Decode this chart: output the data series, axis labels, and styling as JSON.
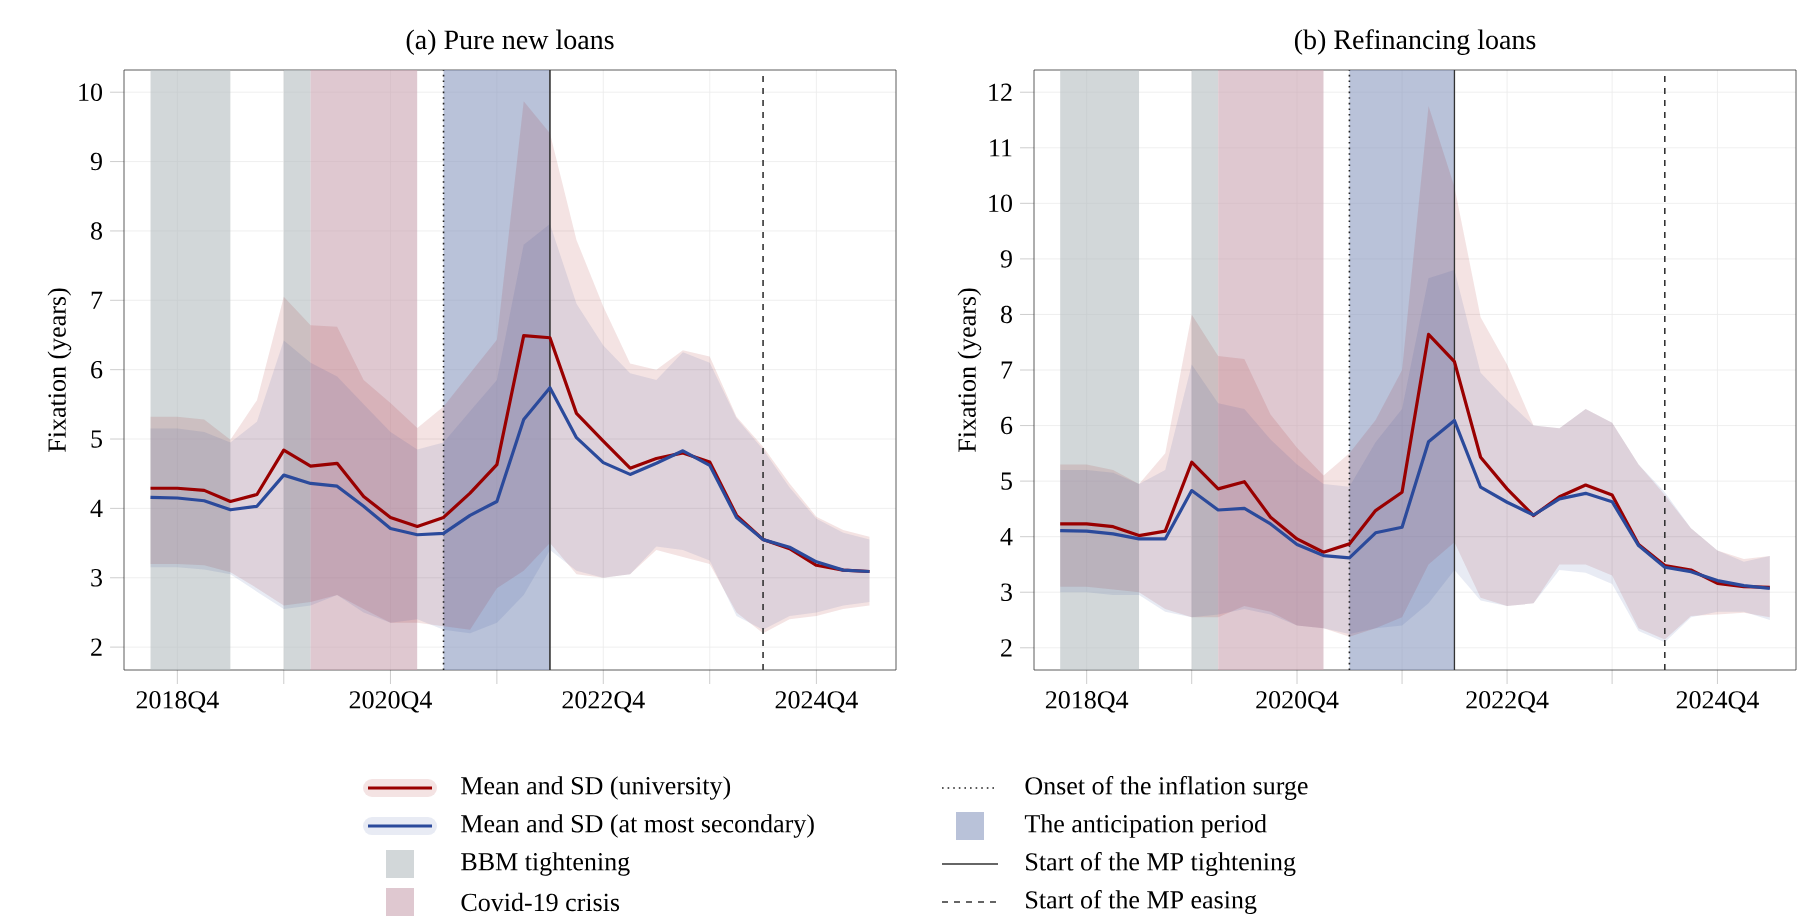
{
  "chart_data": [
    {
      "type": "line",
      "title": "(a) Pure new loans",
      "ylabel": "Fixation (years)",
      "x": [
        "2018-07",
        "2018-10",
        "2019-01",
        "2019-04",
        "2019-07",
        "2019-10",
        "2020-01",
        "2020-04",
        "2020-07",
        "2020-10",
        "2021-01",
        "2021-04",
        "2021-07",
        "2021-10",
        "2022-01",
        "2022-04",
        "2022-07",
        "2022-10",
        "2023-01",
        "2023-04",
        "2023-07",
        "2023-10",
        "2024-01",
        "2024-04",
        "2024-07",
        "2024-10",
        "2025-01",
        "2025-04"
      ],
      "series": [
        {
          "name": "Mean and SD (university)",
          "color": "#990000",
          "values": [
            4.29,
            4.29,
            4.26,
            4.1,
            4.2,
            4.84,
            4.61,
            4.65,
            4.17,
            3.87,
            3.74,
            3.87,
            4.22,
            4.63,
            6.49,
            6.46,
            5.37,
            4.97,
            4.58,
            4.72,
            4.8,
            4.67,
            3.9,
            3.55,
            3.42,
            3.18,
            3.11,
            3.09
          ],
          "lower": [
            3.2,
            3.2,
            3.18,
            3.08,
            2.85,
            2.6,
            2.65,
            2.75,
            2.55,
            2.35,
            2.35,
            2.3,
            2.25,
            2.85,
            3.1,
            3.5,
            3.05,
            3.0,
            3.05,
            3.4,
            3.3,
            3.2,
            2.5,
            2.2,
            2.4,
            2.45,
            2.55,
            2.6
          ],
          "upper": [
            5.32,
            5.32,
            5.28,
            4.99,
            5.56,
            7.05,
            6.64,
            6.62,
            5.85,
            5.52,
            5.16,
            5.47,
            5.95,
            6.43,
            9.87,
            9.41,
            7.87,
            6.91,
            6.09,
            6.0,
            6.28,
            6.19,
            5.32,
            4.89,
            4.36,
            3.88,
            3.69,
            3.59
          ]
        },
        {
          "name": "Mean and SD (at most secondary)",
          "color": "#2b4a9b",
          "values": [
            4.16,
            4.15,
            4.11,
            3.98,
            4.03,
            4.48,
            4.36,
            4.32,
            4.03,
            3.71,
            3.62,
            3.64,
            3.9,
            4.1,
            5.28,
            5.74,
            5.02,
            4.66,
            4.49,
            4.65,
            4.83,
            4.62,
            3.87,
            3.55,
            3.44,
            3.23,
            3.11,
            3.09
          ],
          "lower": [
            3.15,
            3.15,
            3.12,
            3.05,
            2.8,
            2.55,
            2.6,
            2.75,
            2.5,
            2.35,
            2.4,
            2.25,
            2.2,
            2.35,
            2.75,
            3.4,
            3.1,
            3.0,
            3.05,
            3.45,
            3.4,
            3.25,
            2.45,
            2.25,
            2.45,
            2.5,
            2.6,
            2.65
          ],
          "upper": [
            5.15,
            5.15,
            5.1,
            4.95,
            5.25,
            6.42,
            6.1,
            5.9,
            5.5,
            5.1,
            4.85,
            4.95,
            5.4,
            5.85,
            7.8,
            8.1,
            6.95,
            6.35,
            5.95,
            5.85,
            6.25,
            6.1,
            5.3,
            4.85,
            4.3,
            3.85,
            3.65,
            3.55
          ]
        }
      ],
      "xlim": [
        "2018-04",
        "2025-07"
      ],
      "ylim": [
        1.67,
        10.32
      ],
      "xticks": [
        {
          "value": "2018-10",
          "label": "2018Q4"
        },
        {
          "value": "2019-10",
          "label": null
        },
        {
          "value": "2020-10",
          "label": "2020Q4"
        },
        {
          "value": "2021-10",
          "label": null
        },
        {
          "value": "2022-10",
          "label": "2022Q4"
        },
        {
          "value": "2023-10",
          "label": null
        },
        {
          "value": "2024-10",
          "label": "2024Q4"
        }
      ],
      "yticks": [
        2,
        3,
        4,
        5,
        6,
        7,
        8,
        9,
        10
      ],
      "bands": [
        {
          "axis": "x",
          "from": "2018-07",
          "to": "2019-04",
          "label": "BBM tightening",
          "color": "#b4bcc0"
        },
        {
          "axis": "x",
          "from": "2019-10",
          "to": "2020-01",
          "color": "#b4bcc0"
        },
        {
          "axis": "x",
          "from": "2020-01",
          "to": "2021-01",
          "label": "Covid-19 crisis",
          "color": "#c9a3b0"
        },
        {
          "axis": "x",
          "from": "2021-04",
          "to": "2022-04",
          "label": "The anticipation period",
          "color": "#8a9abf"
        }
      ],
      "ref_lines": [
        {
          "axis": "x",
          "value": "2021-04",
          "label": "Onset of the inflation surge",
          "line_style": "dotted",
          "color": "#222222"
        },
        {
          "axis": "x",
          "value": "2022-04",
          "label": "Start of the MP tightening",
          "line_style": "solid",
          "color": "#333333"
        },
        {
          "axis": "x",
          "value": "2024-04",
          "label": "Start of the MP easing",
          "line_style": "dashed",
          "color": "#333333"
        }
      ],
      "grid": true,
      "legend": "bottom",
      "marker": "none",
      "line_style": "solid"
    },
    {
      "type": "line",
      "title": "(b) Refinancing loans",
      "ylabel": "Fixation (years)",
      "x": [
        "2018-07",
        "2018-10",
        "2019-01",
        "2019-04",
        "2019-07",
        "2019-10",
        "2020-01",
        "2020-04",
        "2020-07",
        "2020-10",
        "2021-01",
        "2021-04",
        "2021-07",
        "2021-10",
        "2022-01",
        "2022-04",
        "2022-07",
        "2022-10",
        "2023-01",
        "2023-04",
        "2023-07",
        "2023-10",
        "2024-01",
        "2024-04",
        "2024-07",
        "2024-10",
        "2025-01",
        "2025-04"
      ],
      "series": [
        {
          "color": "#990000",
          "values": [
            4.23,
            4.23,
            4.18,
            4.02,
            4.1,
            5.34,
            4.86,
            4.99,
            4.35,
            3.96,
            3.72,
            3.87,
            4.47,
            4.8,
            7.64,
            7.15,
            5.43,
            4.86,
            4.38,
            4.72,
            4.93,
            4.75,
            3.86,
            3.48,
            3.4,
            3.16,
            3.1,
            3.09
          ],
          "lower": [
            3.1,
            3.1,
            3.05,
            3.0,
            2.7,
            2.55,
            2.55,
            2.75,
            2.65,
            2.4,
            2.35,
            2.2,
            2.35,
            2.55,
            3.5,
            3.9,
            2.9,
            2.75,
            2.8,
            3.5,
            3.5,
            3.3,
            2.35,
            2.15,
            2.57,
            2.6,
            2.63,
            2.55
          ],
          "upper": [
            5.3,
            5.3,
            5.2,
            4.95,
            5.5,
            8.0,
            7.25,
            7.2,
            6.2,
            5.6,
            5.1,
            5.5,
            6.1,
            7.0,
            11.75,
            10.3,
            7.95,
            7.1,
            6.0,
            5.95,
            6.3,
            6.05,
            5.3,
            4.75,
            4.15,
            3.75,
            3.6,
            3.65
          ]
        },
        {
          "color": "#2b4a9b",
          "values": [
            4.11,
            4.1,
            4.05,
            3.96,
            3.96,
            4.83,
            4.48,
            4.51,
            4.23,
            3.86,
            3.66,
            3.62,
            4.07,
            4.17,
            5.71,
            6.09,
            4.89,
            4.62,
            4.39,
            4.68,
            4.78,
            4.63,
            3.84,
            3.45,
            3.37,
            3.21,
            3.12,
            3.07
          ],
          "lower": [
            3.0,
            3.0,
            2.95,
            2.95,
            2.65,
            2.55,
            2.6,
            2.7,
            2.6,
            2.4,
            2.35,
            2.25,
            2.35,
            2.4,
            2.8,
            3.4,
            2.85,
            2.75,
            2.8,
            3.4,
            3.35,
            3.15,
            2.3,
            2.1,
            2.55,
            2.65,
            2.65,
            2.5
          ],
          "upper": [
            5.2,
            5.2,
            5.15,
            4.95,
            5.2,
            7.1,
            6.4,
            6.3,
            5.75,
            5.3,
            4.95,
            4.9,
            5.7,
            6.3,
            8.65,
            8.8,
            6.95,
            6.45,
            6.0,
            5.95,
            6.3,
            6.05,
            5.3,
            4.8,
            4.15,
            3.75,
            3.55,
            3.65
          ]
        }
      ],
      "xlim": [
        "2018-04",
        "2025-07"
      ],
      "ylim": [
        1.6,
        12.4
      ],
      "xticks": [
        {
          "value": "2018-10",
          "label": "2018Q4"
        },
        {
          "value": "2019-10",
          "label": null
        },
        {
          "value": "2020-10",
          "label": "2020Q4"
        },
        {
          "value": "2021-10",
          "label": null
        },
        {
          "value": "2022-10",
          "label": "2022Q4"
        },
        {
          "value": "2023-10",
          "label": null
        },
        {
          "value": "2024-10",
          "label": "2024Q4"
        }
      ],
      "yticks": [
        2,
        3,
        4,
        5,
        6,
        7,
        8,
        9,
        10,
        11,
        12
      ],
      "bands": [
        {
          "axis": "x",
          "from": "2018-07",
          "to": "2019-04",
          "color": "#b4bcc0"
        },
        {
          "axis": "x",
          "from": "2019-10",
          "to": "2020-01",
          "color": "#b4bcc0"
        },
        {
          "axis": "x",
          "from": "2020-01",
          "to": "2021-01",
          "color": "#c9a3b0"
        },
        {
          "axis": "x",
          "from": "2021-04",
          "to": "2022-04",
          "color": "#8a9abf"
        }
      ],
      "ref_lines": [
        {
          "axis": "x",
          "value": "2021-04",
          "line_style": "dotted",
          "color": "#222222"
        },
        {
          "axis": "x",
          "value": "2022-04",
          "line_style": "solid",
          "color": "#333333"
        },
        {
          "axis": "x",
          "value": "2024-04",
          "line_style": "dashed",
          "color": "#333333"
        }
      ],
      "grid": true,
      "marker": "none",
      "line_style": "solid"
    }
  ]
}
